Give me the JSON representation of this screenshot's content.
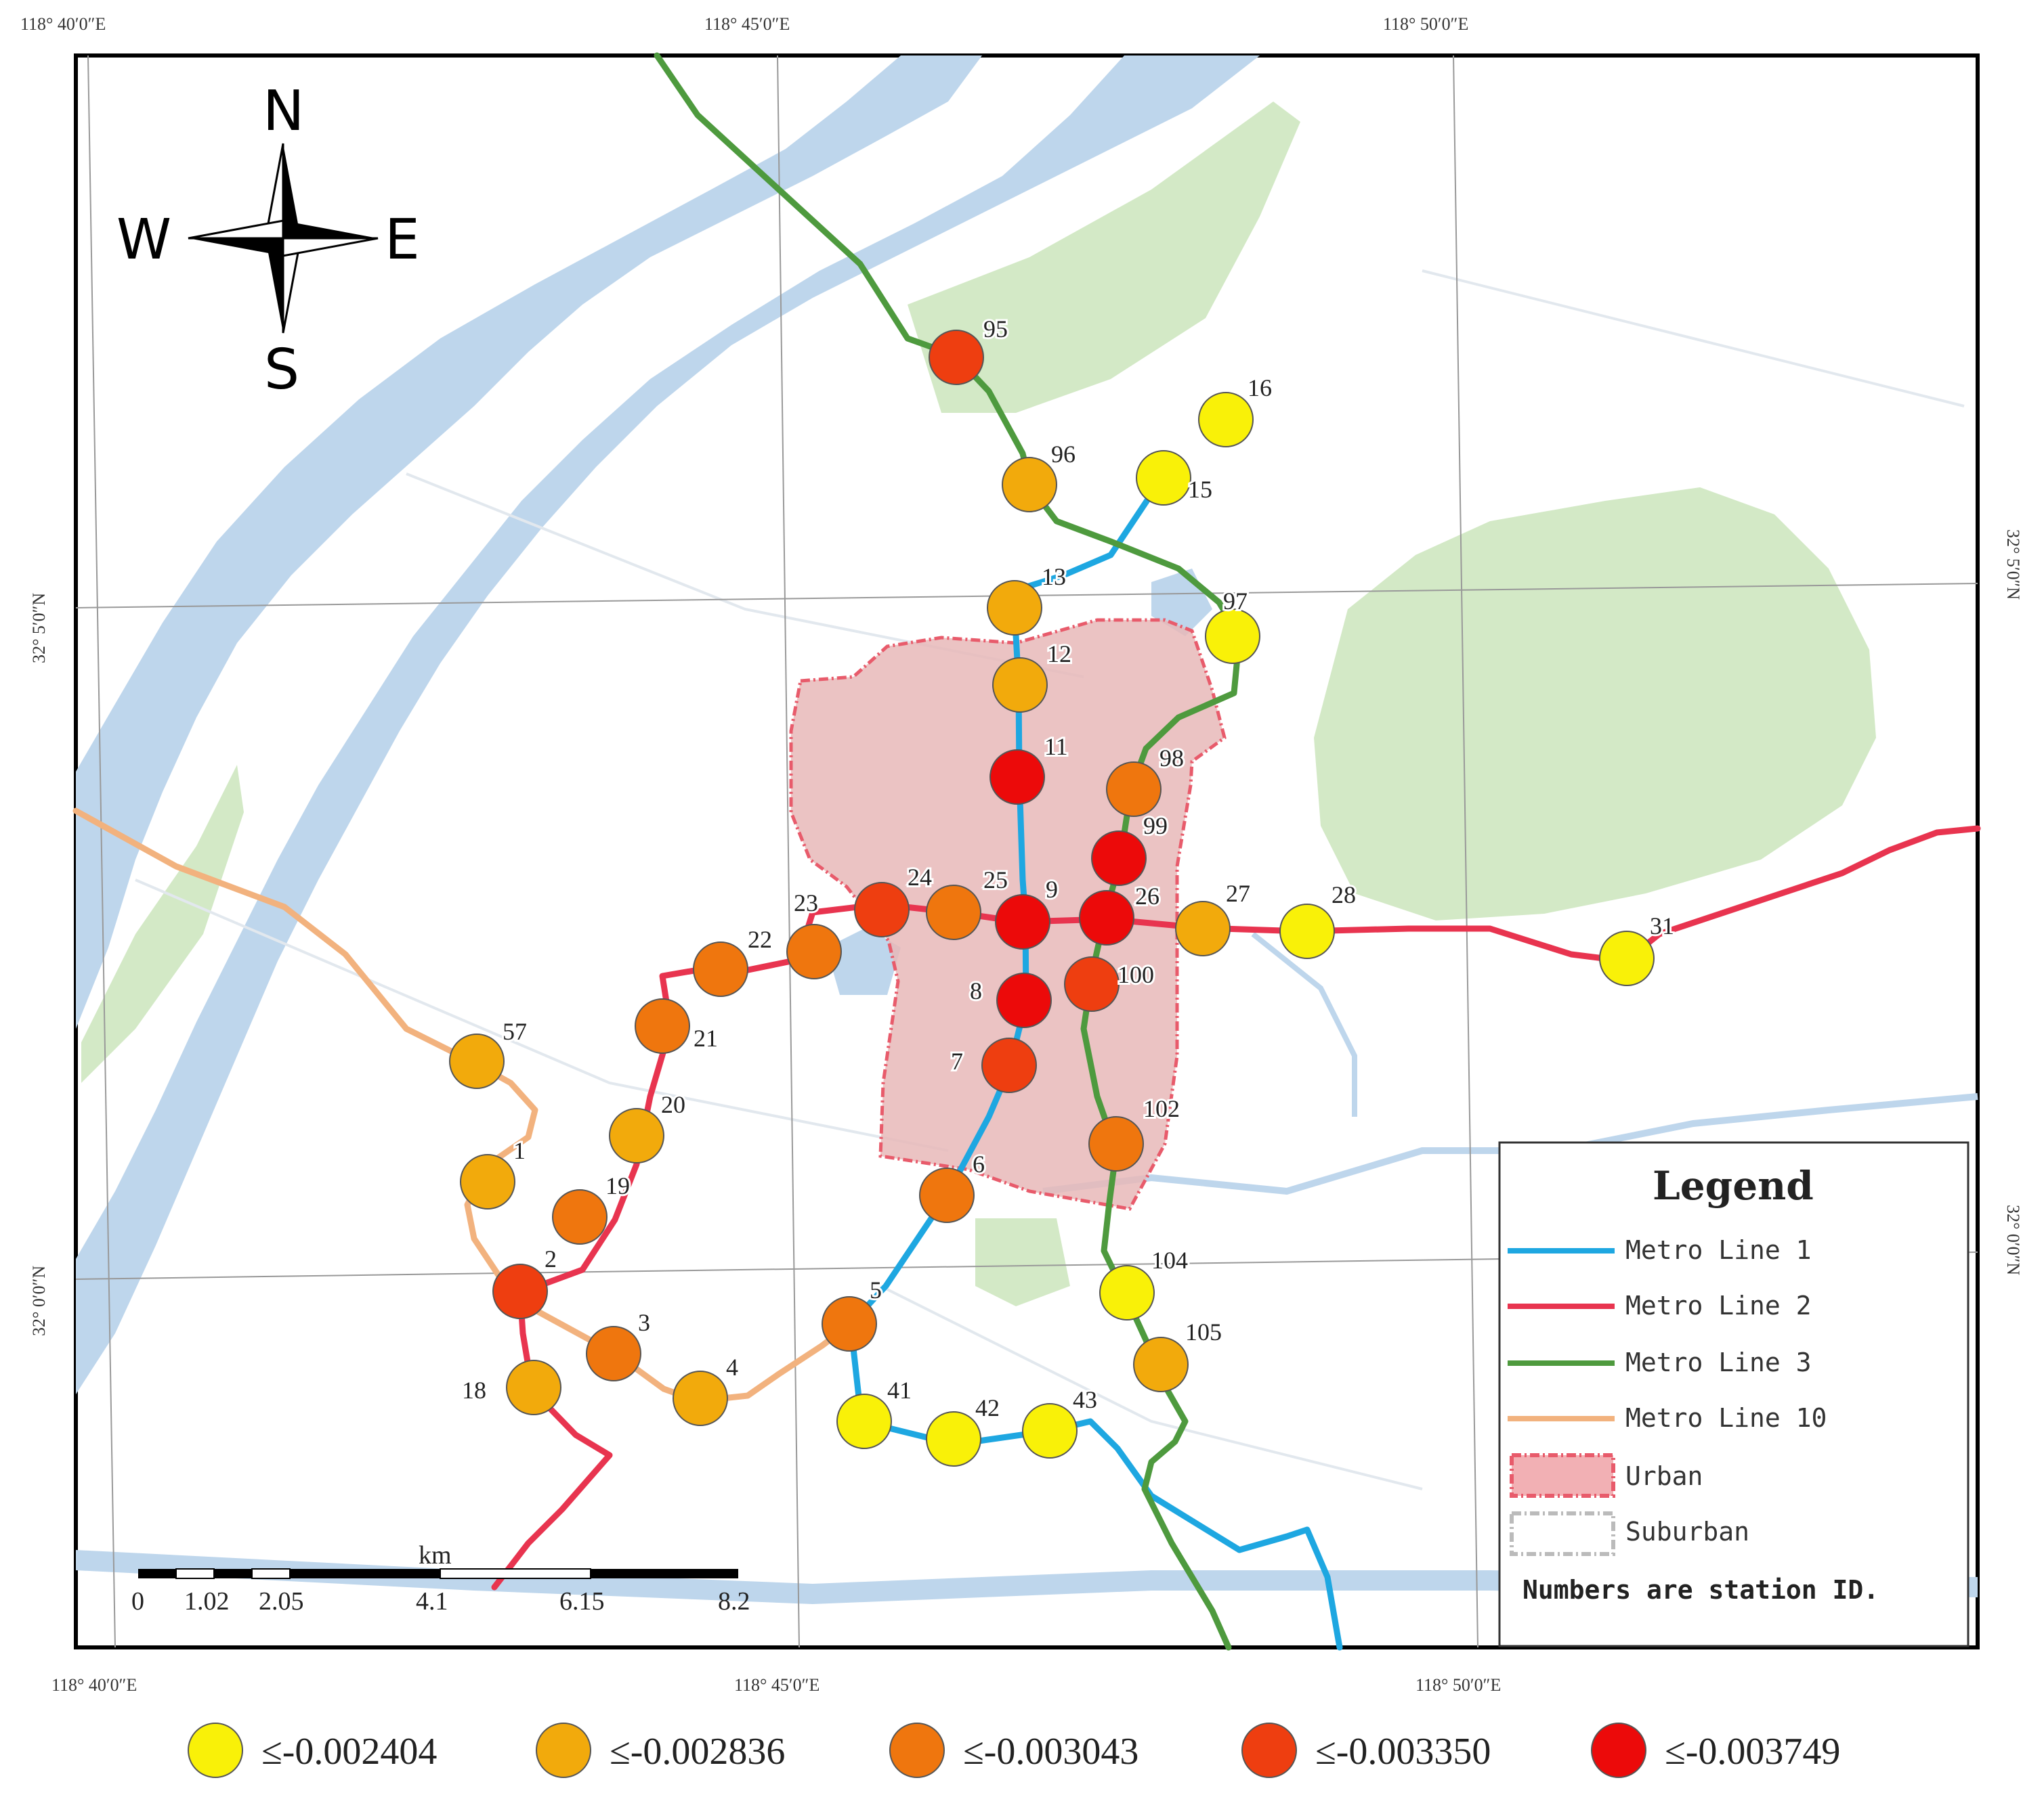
{
  "coords": {
    "top": [
      "118°  40′0″E",
      "118°  45′0″E",
      "118°  50′0″E"
    ],
    "bottom": [
      "118°  40′0″E",
      "118°  45′0″E",
      "118°  50′0″E"
    ],
    "left": [
      "32°  5′0″N",
      "32°  0′0″N"
    ],
    "right": [
      "32°  5′0″N",
      "32°  0′0″N"
    ]
  },
  "compass": {
    "n": "N",
    "s": "S",
    "e": "E",
    "w": "W"
  },
  "legend": {
    "title": "Legend",
    "items": [
      "Metro Line 1",
      "Metro Line 2",
      "Metro Line 3",
      "Metro Line 10",
      "Urban",
      "Suburban"
    ],
    "note": "Numbers are station ID.",
    "colors": {
      "line1": "#1ea7e1",
      "line2": "#e8344f",
      "line3": "#4e9a3e",
      "line10": "#f2b27e",
      "urban": "#e85b6b",
      "suburban": "#bbbbbb"
    }
  },
  "scale": {
    "unit": "km",
    "ticks": [
      "0",
      "1.02",
      "2.05",
      "4.1",
      "6.15",
      "8.2"
    ]
  },
  "classes": [
    {
      "label": "≤-0.002404",
      "color": "#f9f108"
    },
    {
      "label": "≤-0.002836",
      "color": "#f2aa0c"
    },
    {
      "label": "≤-0.003043",
      "color": "#ef760e"
    },
    {
      "label": "≤-0.003350",
      "color": "#ee3e10"
    },
    {
      "label": "≤-0.003749",
      "color": "#ec0a0a"
    }
  ],
  "stations": [
    {
      "id": "95",
      "class": 3
    },
    {
      "id": "16",
      "class": 0
    },
    {
      "id": "96",
      "class": 1
    },
    {
      "id": "15",
      "class": 0
    },
    {
      "id": "13",
      "class": 1
    },
    {
      "id": "97",
      "class": 0
    },
    {
      "id": "12",
      "class": 1
    },
    {
      "id": "11",
      "class": 4
    },
    {
      "id": "98",
      "class": 2
    },
    {
      "id": "99",
      "class": 4
    },
    {
      "id": "24",
      "class": 3
    },
    {
      "id": "25",
      "class": 2
    },
    {
      "id": "9",
      "class": 4
    },
    {
      "id": "26",
      "class": 4
    },
    {
      "id": "27",
      "class": 1
    },
    {
      "id": "28",
      "class": 0
    },
    {
      "id": "31",
      "class": 0
    },
    {
      "id": "23",
      "class": 2
    },
    {
      "id": "22",
      "class": 2
    },
    {
      "id": "100",
      "class": 3
    },
    {
      "id": "8",
      "class": 4
    },
    {
      "id": "21",
      "class": 2
    },
    {
      "id": "57",
      "class": 1
    },
    {
      "id": "7",
      "class": 3
    },
    {
      "id": "20",
      "class": 1
    },
    {
      "id": "102",
      "class": 2
    },
    {
      "id": "1",
      "class": 1
    },
    {
      "id": "19",
      "class": 2
    },
    {
      "id": "6",
      "class": 2
    },
    {
      "id": "2",
      "class": 3
    },
    {
      "id": "104",
      "class": 0
    },
    {
      "id": "5",
      "class": 2
    },
    {
      "id": "3",
      "class": 2
    },
    {
      "id": "105",
      "class": 1
    },
    {
      "id": "18",
      "class": 1
    },
    {
      "id": "4",
      "class": 1
    },
    {
      "id": "41",
      "class": 0
    },
    {
      "id": "42",
      "class": 0
    },
    {
      "id": "43",
      "class": 0
    }
  ]
}
